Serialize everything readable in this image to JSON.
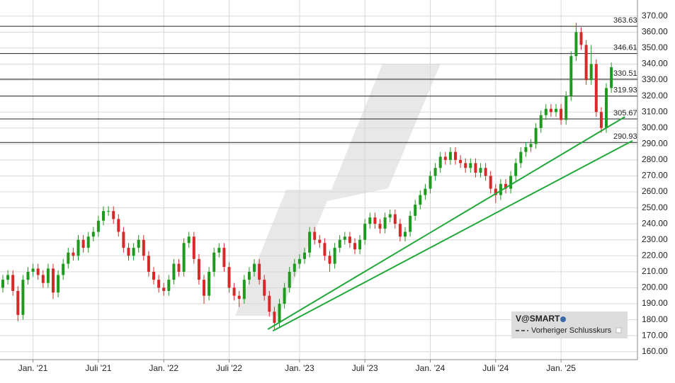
{
  "chart_data": {
    "type": "candlestick",
    "series_name": "V@SMART",
    "reference_line_label": "Vorheriger Schlusskurs",
    "up_color": "#1e9b1e",
    "down_color": "#d42a2a",
    "level_color": "#222222",
    "trendline_color": "#22a83a",
    "ylim": [
      155,
      377
    ],
    "yticks": [
      {
        "value": 160,
        "label": "160.00"
      },
      {
        "value": 170,
        "label": "170.00"
      },
      {
        "value": 180,
        "label": "180.00"
      },
      {
        "value": 190,
        "label": "190.00"
      },
      {
        "value": 200,
        "label": "200.00"
      },
      {
        "value": 210,
        "label": "210.00"
      },
      {
        "value": 220,
        "label": "220.00"
      },
      {
        "value": 230,
        "label": "230.00"
      },
      {
        "value": 240,
        "label": "240.00"
      },
      {
        "value": 250,
        "label": "250.00"
      },
      {
        "value": 260,
        "label": "260.00"
      },
      {
        "value": 270,
        "label": "270.00"
      },
      {
        "value": 280,
        "label": "280.00"
      },
      {
        "value": 290,
        "label": "290.00"
      },
      {
        "value": 300,
        "label": "300.00"
      },
      {
        "value": 310,
        "label": "310.00"
      },
      {
        "value": 320,
        "label": "320.00"
      },
      {
        "value": 330,
        "label": "330.00"
      },
      {
        "value": 340,
        "label": "340.00"
      },
      {
        "value": 350,
        "label": "350.00"
      },
      {
        "value": 360,
        "label": "360.00"
      },
      {
        "value": 370,
        "label": "370.00"
      }
    ],
    "grid": true,
    "levels": [
      363.63,
      346.61,
      330.51,
      319.93,
      305.67,
      290.93
    ],
    "trendlines": [
      {
        "x": [
          52.7,
          123.7
        ],
        "y": [
          174,
          307
        ]
      },
      {
        "x": [
          53.7,
          125.2
        ],
        "y": [
          173,
          292
        ]
      }
    ],
    "categories": [
      null,
      null,
      null,
      null,
      null,
      null,
      "Jan. '21",
      null,
      null,
      null,
      null,
      null,
      null,
      null,
      null,
      null,
      null,
      null,
      null,
      "Juli '21",
      null,
      null,
      null,
      null,
      null,
      null,
      null,
      null,
      null,
      null,
      null,
      null,
      "Jan. '22",
      null,
      null,
      null,
      null,
      null,
      null,
      null,
      null,
      null,
      null,
      null,
      null,
      "Juli '22",
      null,
      null,
      null,
      null,
      null,
      null,
      null,
      null,
      null,
      null,
      null,
      null,
      null,
      "Jan. '23",
      null,
      null,
      null,
      null,
      null,
      null,
      null,
      null,
      null,
      null,
      null,
      null,
      "Juli '23",
      null,
      null,
      null,
      null,
      null,
      null,
      null,
      null,
      null,
      null,
      null,
      null,
      "Jan. '24",
      null,
      null,
      null,
      null,
      null,
      null,
      null,
      null,
      null,
      null,
      null,
      null,
      "Juli '24",
      null,
      null,
      null,
      null,
      null,
      null,
      null,
      null,
      null,
      null,
      null,
      null,
      "Jan. '25",
      null,
      null,
      null,
      null,
      null,
      null,
      null,
      null,
      null,
      null
    ],
    "open": [
      200,
      205,
      208,
      198,
      183,
      205,
      210,
      212,
      208,
      203,
      212,
      197,
      208,
      215,
      222,
      220,
      230,
      225,
      232,
      235,
      242,
      248,
      248,
      243,
      235,
      225,
      220,
      225,
      230,
      220,
      210,
      205,
      200,
      198,
      205,
      215,
      210,
      228,
      232,
      218,
      205,
      195,
      210,
      222,
      225,
      213,
      200,
      195,
      193,
      205,
      210,
      215,
      205,
      195,
      185,
      178,
      190,
      200,
      210,
      215,
      218,
      222,
      235,
      230,
      228,
      220,
      215,
      225,
      230,
      232,
      228,
      224,
      230,
      240,
      244,
      240,
      237,
      244,
      246,
      240,
      232,
      235,
      245,
      252,
      258,
      262,
      270,
      275,
      282,
      280,
      285,
      280,
      278,
      275,
      278,
      272,
      275,
      270,
      262,
      258,
      265,
      262,
      270,
      278,
      285,
      288,
      290,
      300,
      308,
      312,
      310,
      312,
      305,
      320,
      345,
      360,
      352,
      330,
      340,
      310,
      300,
      325
    ],
    "high": [
      208,
      211,
      211,
      201,
      208,
      213,
      215,
      215,
      211,
      215,
      215,
      211,
      218,
      225,
      225,
      233,
      233,
      235,
      238,
      245,
      251,
      251,
      251,
      246,
      238,
      228,
      228,
      233,
      233,
      223,
      213,
      208,
      203,
      208,
      218,
      218,
      231,
      235,
      235,
      221,
      208,
      213,
      225,
      228,
      228,
      216,
      203,
      198,
      208,
      213,
      218,
      218,
      208,
      198,
      188,
      193,
      203,
      213,
      218,
      221,
      225,
      238,
      238,
      233,
      231,
      223,
      228,
      233,
      235,
      235,
      231,
      233,
      243,
      247,
      247,
      243,
      247,
      249,
      249,
      243,
      238,
      248,
      255,
      261,
      265,
      273,
      278,
      285,
      285,
      288,
      288,
      283,
      281,
      281,
      281,
      278,
      278,
      273,
      265,
      268,
      268,
      273,
      281,
      288,
      291,
      293,
      303,
      311,
      315,
      315,
      315,
      315,
      323,
      348,
      366,
      363,
      355,
      352,
      343,
      313,
      328,
      341
    ],
    "low": [
      197,
      202,
      195,
      179,
      180,
      202,
      207,
      205,
      200,
      200,
      193,
      194,
      205,
      212,
      217,
      217,
      222,
      222,
      229,
      232,
      239,
      245,
      240,
      232,
      222,
      217,
      217,
      222,
      217,
      207,
      202,
      197,
      195,
      195,
      202,
      207,
      207,
      225,
      215,
      202,
      190,
      192,
      207,
      219,
      210,
      197,
      192,
      188,
      190,
      202,
      207,
      202,
      192,
      182,
      174,
      175,
      187,
      197,
      207,
      212,
      215,
      219,
      227,
      225,
      217,
      210,
      212,
      222,
      227,
      225,
      221,
      221,
      227,
      237,
      237,
      234,
      234,
      241,
      237,
      229,
      229,
      232,
      242,
      249,
      255,
      259,
      267,
      272,
      277,
      277,
      277,
      275,
      272,
      272,
      269,
      269,
      267,
      259,
      253,
      255,
      259,
      259,
      267,
      275,
      282,
      285,
      287,
      297,
      305,
      307,
      307,
      302,
      302,
      317,
      342,
      349,
      327,
      327,
      307,
      297,
      297,
      322
    ],
    "close": [
      205,
      208,
      198,
      183,
      205,
      210,
      212,
      208,
      203,
      212,
      197,
      208,
      215,
      222,
      220,
      230,
      225,
      232,
      235,
      242,
      248,
      248,
      243,
      235,
      225,
      220,
      225,
      230,
      220,
      210,
      205,
      200,
      198,
      205,
      215,
      210,
      228,
      232,
      218,
      205,
      195,
      210,
      222,
      225,
      213,
      200,
      195,
      193,
      205,
      210,
      215,
      205,
      195,
      185,
      178,
      190,
      200,
      210,
      215,
      218,
      222,
      235,
      230,
      228,
      220,
      215,
      225,
      230,
      232,
      228,
      224,
      230,
      240,
      244,
      240,
      237,
      244,
      246,
      240,
      232,
      235,
      245,
      252,
      258,
      262,
      270,
      275,
      282,
      280,
      285,
      280,
      278,
      275,
      278,
      272,
      275,
      270,
      262,
      258,
      265,
      262,
      270,
      278,
      285,
      288,
      290,
      300,
      308,
      312,
      310,
      312,
      305,
      320,
      345,
      360,
      352,
      330,
      340,
      310,
      300,
      325,
      338
    ]
  }
}
